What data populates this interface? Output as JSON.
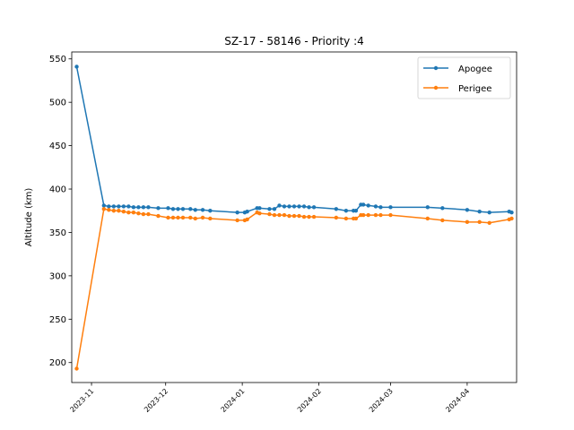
{
  "chart_data": {
    "type": "line",
    "title": "SZ-17 - 58146 - Priority :4",
    "xlabel": "",
    "ylabel": "Altitude (km)",
    "x_ticks": [
      "2023-11",
      "2023-12",
      "2024-01",
      "2024-02",
      "2024-03",
      "2024-04"
    ],
    "x_tick_dates": [
      "2023-11-01",
      "2023-12-01",
      "2024-01-01",
      "2024-02-01",
      "2024-03-01",
      "2024-04-01"
    ],
    "xlim": [
      "2023-10-24",
      "2024-04-21"
    ],
    "y_ticks": [
      200,
      250,
      300,
      350,
      400,
      450,
      500,
      550
    ],
    "ylim": [
      177,
      558
    ],
    "grid": false,
    "legend_position": "top-right",
    "x": [
      "2023-10-26",
      "2023-11-06",
      "2023-11-08",
      "2023-11-10",
      "2023-11-12",
      "2023-11-14",
      "2023-11-16",
      "2023-11-18",
      "2023-11-20",
      "2023-11-22",
      "2023-11-24",
      "2023-11-28",
      "2023-12-02",
      "2023-12-04",
      "2023-12-06",
      "2023-12-08",
      "2023-12-11",
      "2023-12-13",
      "2023-12-16",
      "2023-12-19",
      "2023-12-30",
      "2024-01-02",
      "2024-01-03",
      "2024-01-07",
      "2024-01-08",
      "2024-01-12",
      "2024-01-14",
      "2024-01-16",
      "2024-01-18",
      "2024-01-20",
      "2024-01-22",
      "2024-01-24",
      "2024-01-26",
      "2024-01-28",
      "2024-01-30",
      "2024-02-08",
      "2024-02-12",
      "2024-02-15",
      "2024-02-16",
      "2024-02-18",
      "2024-02-19",
      "2024-02-21",
      "2024-02-24",
      "2024-02-26",
      "2024-03-01",
      "2024-03-16",
      "2024-03-22",
      "2024-04-01",
      "2024-04-06",
      "2024-04-10",
      "2024-04-18",
      "2024-04-19"
    ],
    "series": [
      {
        "name": "Apogee",
        "color": "#1f77b4",
        "values": [
          541,
          381,
          380,
          380,
          380,
          380,
          380,
          379,
          379,
          379,
          379,
          378,
          378,
          377,
          377,
          377,
          377,
          376,
          376,
          375,
          373,
          373,
          374,
          378,
          378,
          377,
          377,
          381,
          380,
          380,
          380,
          380,
          380,
          379,
          379,
          377,
          375,
          375,
          375,
          382,
          382,
          381,
          380,
          379,
          379,
          379,
          378,
          376,
          374,
          373,
          374,
          373
        ]
      },
      {
        "name": "Perigee",
        "color": "#ff7f0e",
        "values": [
          193,
          377,
          376,
          375,
          375,
          374,
          373,
          373,
          372,
          371,
          371,
          369,
          367,
          367,
          367,
          367,
          367,
          366,
          367,
          366,
          364,
          364,
          365,
          373,
          372,
          371,
          370,
          370,
          370,
          369,
          369,
          369,
          368,
          368,
          368,
          367,
          366,
          366,
          366,
          370,
          370,
          370,
          370,
          370,
          370,
          366,
          364,
          362,
          362,
          361,
          365,
          366
        ]
      }
    ]
  }
}
